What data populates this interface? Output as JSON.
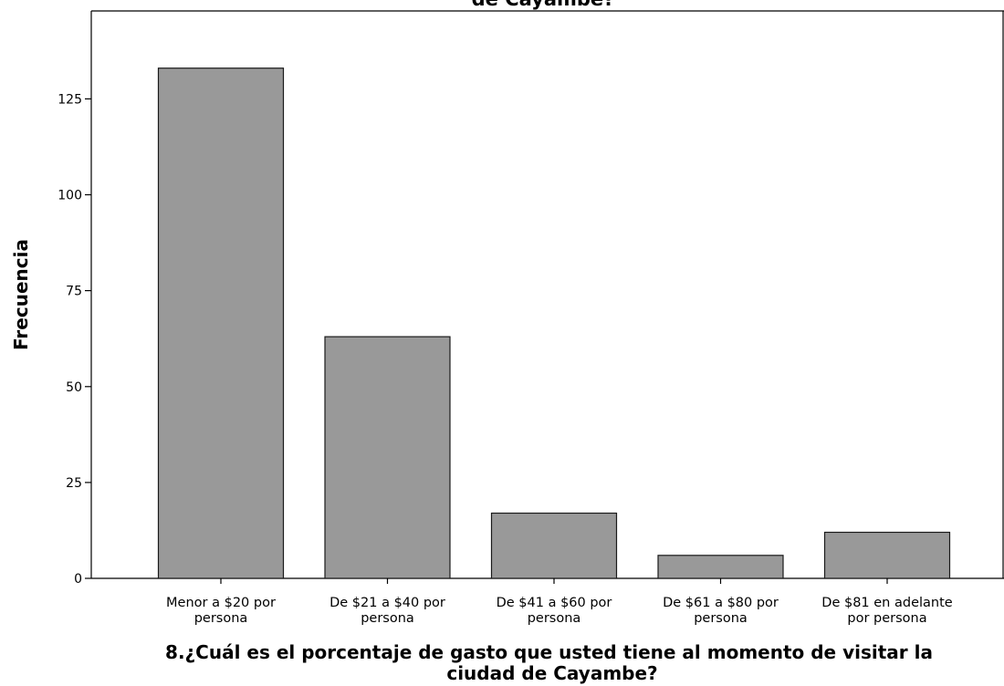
{
  "chart_data": {
    "type": "bar",
    "title": "de Cayambe?",
    "xlabel": [
      "8.¿Cuál es el porcentaje de gasto que usted tiene al momento de visitar la",
      "ciudad de Cayambe?"
    ],
    "ylabel": "Frecuencia",
    "categories": [
      [
        "Menor a $20 por",
        "persona"
      ],
      [
        "De $21 a $40 por",
        "persona"
      ],
      [
        "De $41 a $60 por",
        "persona"
      ],
      [
        "De $61 a $80 por",
        "persona"
      ],
      [
        "De $81 en adelante",
        "por persona"
      ]
    ],
    "values": [
      133,
      63,
      17,
      6,
      12
    ],
    "yticks": [
      0,
      25,
      50,
      75,
      100,
      125
    ],
    "ylim": [
      0,
      150
    ],
    "grid": false,
    "colors": {
      "bar_fill": "#999999",
      "bar_stroke": "#1a1a1a",
      "axis": "#000000"
    }
  }
}
